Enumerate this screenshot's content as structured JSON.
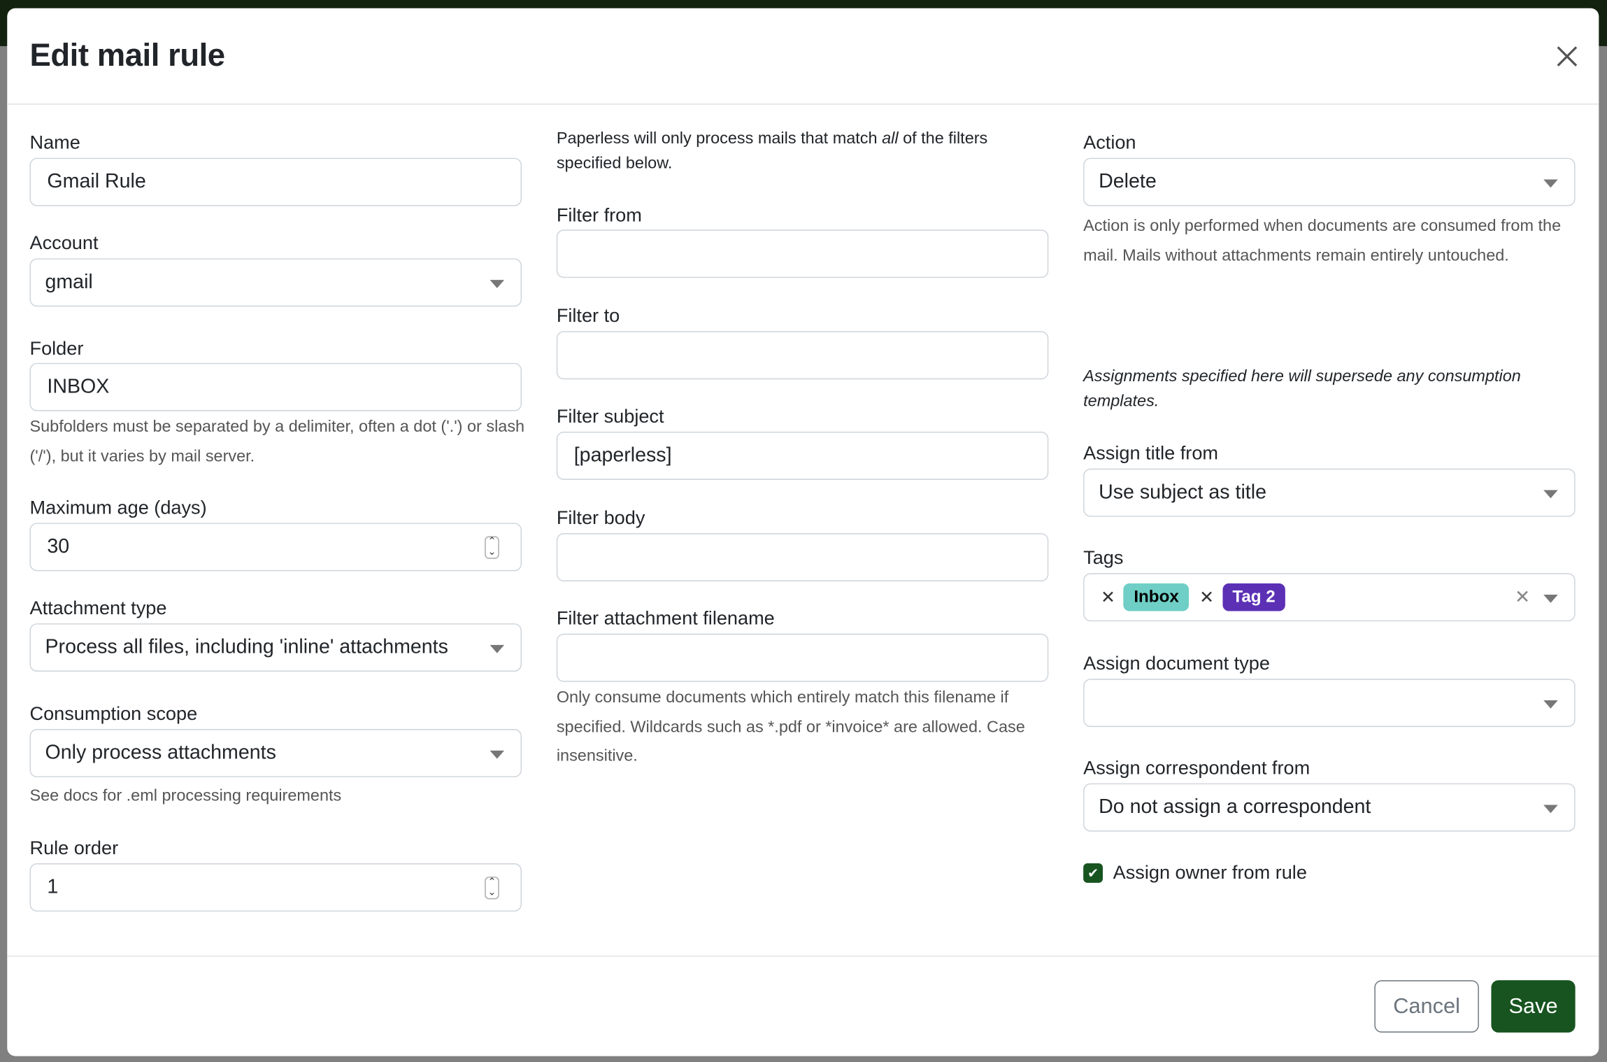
{
  "dialog": {
    "title": "Edit mail rule",
    "close_icon": "close-icon"
  },
  "col1": {
    "name_label": "Name",
    "name_value": "Gmail Rule",
    "account_label": "Account",
    "account_value": "gmail",
    "folder_label": "Folder",
    "folder_value": "INBOX",
    "folder_help": "Subfolders must be separated by a delimiter, often a dot ('.') or slash ('/'), but it varies by mail server.",
    "max_age_label": "Maximum age (days)",
    "max_age_value": "30",
    "attachment_type_label": "Attachment type",
    "attachment_type_value": "Process all files, including 'inline' attachments",
    "scope_label": "Consumption scope",
    "scope_value": "Only process attachments",
    "scope_help": "See docs for .eml processing requirements",
    "rule_order_label": "Rule order",
    "rule_order_value": "1"
  },
  "col2": {
    "intro_pre": "Paperless will only process mails that match ",
    "intro_em": "all",
    "intro_post": " of the filters specified below.",
    "filter_from_label": "Filter from",
    "filter_from_value": "",
    "filter_to_label": "Filter to",
    "filter_to_value": "",
    "filter_subject_label": "Filter subject",
    "filter_subject_value": "[paperless]",
    "filter_body_label": "Filter body",
    "filter_body_value": "",
    "filter_attachment_label": "Filter attachment filename",
    "filter_attachment_value": "",
    "filter_attachment_help": "Only consume documents which entirely match this filename if specified. Wildcards such as *.pdf or *invoice* are allowed. Case insensitive."
  },
  "col3": {
    "action_label": "Action",
    "action_value": "Delete",
    "action_help": "Action is only performed when documents are consumed from the mail. Mails without attachments remain entirely untouched.",
    "assign_note": "Assignments specified here will supersede any consumption templates.",
    "title_from_label": "Assign title from",
    "title_from_value": "Use subject as title",
    "tags_label": "Tags",
    "tags": [
      {
        "label": "Inbox",
        "color": "#6fcfc6",
        "text_color": "#000000"
      },
      {
        "label": "Tag 2",
        "color": "#5c30b5",
        "text_color": "#ffffff"
      }
    ],
    "doc_type_label": "Assign document type",
    "doc_type_value": "",
    "correspondent_label": "Assign correspondent from",
    "correspondent_value": "Do not assign a correspondent",
    "owner_label": "Assign owner from rule",
    "owner_checked": true
  },
  "footer": {
    "cancel_label": "Cancel",
    "save_label": "Save"
  },
  "colors": {
    "primary": "#17541f",
    "topbar": "#13220f"
  }
}
